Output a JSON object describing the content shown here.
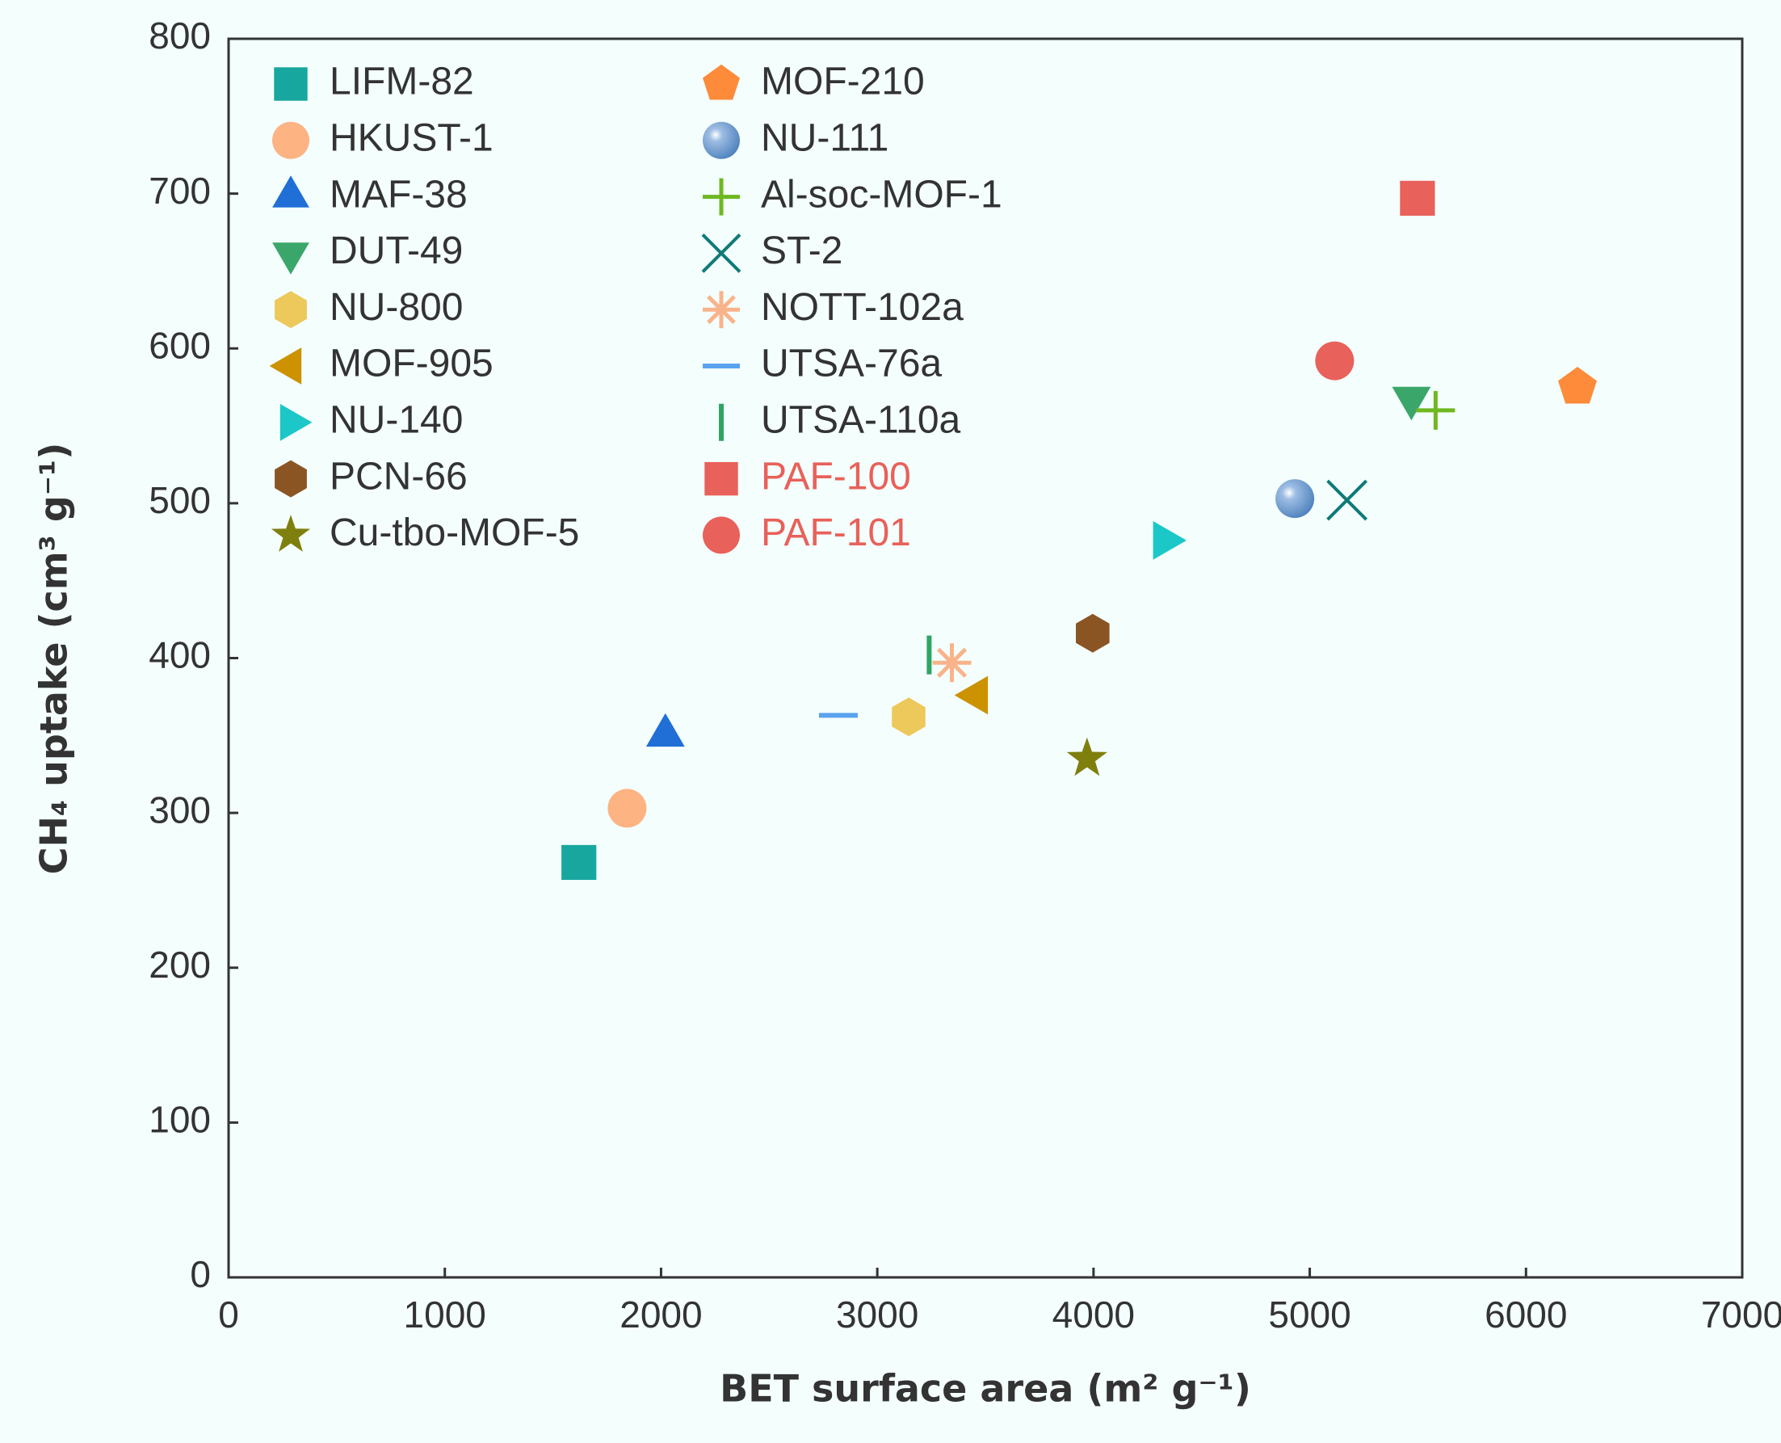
{
  "chart_data": {
    "type": "scatter",
    "xlabel": "BET surface area (m² g⁻¹)",
    "ylabel": "CH₄ uptake (cm³ g⁻¹)",
    "xlim": [
      0,
      7000
    ],
    "xticks": [
      0,
      1000,
      2000,
      3000,
      4000,
      5000,
      6000,
      7000
    ],
    "ylim": [
      0,
      800
    ],
    "yticks": [
      0,
      100,
      200,
      300,
      400,
      500,
      600,
      700,
      800
    ],
    "legend": "upper left",
    "series": [
      {
        "name": "LIFM-82",
        "color": "#17a79e",
        "marker": "square",
        "x": [
          1620
        ],
        "values": [
          268
        ]
      },
      {
        "name": "HKUST-1",
        "color": "#fdb382",
        "marker": "circle",
        "x": [
          1843
        ],
        "values": [
          303
        ]
      },
      {
        "name": "MAF-38",
        "color": "#1f6fd6",
        "marker": "triangle-up",
        "x": [
          2020
        ],
        "values": [
          350
        ]
      },
      {
        "name": "DUT-49",
        "color": "#3aa66a",
        "marker": "triangle-down",
        "x": [
          5470
        ],
        "values": [
          568
        ]
      },
      {
        "name": "NU-800",
        "color": "#edc85a",
        "marker": "hexagon",
        "x": [
          3145
        ],
        "values": [
          362
        ]
      },
      {
        "name": "MOF-905",
        "color": "#cc9200",
        "marker": "triangle-left",
        "x": [
          3460
        ],
        "values": [
          376
        ]
      },
      {
        "name": "NU-140",
        "color": "#1bc7c7",
        "marker": "triangle-right",
        "x": [
          4327
        ],
        "values": [
          476
        ]
      },
      {
        "name": "PCN-66",
        "color": "#8a5523",
        "marker": "hexagon",
        "x": [
          3996
        ],
        "values": [
          416
        ]
      },
      {
        "name": "Cu-tbo-MOF-5",
        "color": "#7f7f0e",
        "marker": "star",
        "x": [
          3970
        ],
        "values": [
          335
        ]
      },
      {
        "name": "MOF-210",
        "color": "#fd8b3a",
        "marker": "pentagon",
        "x": [
          6238
        ],
        "values": [
          575
        ]
      },
      {
        "name": "NU-111",
        "color": "#6a9bd0",
        "marker": "sphere",
        "x": [
          4931
        ],
        "values": [
          503
        ]
      },
      {
        "name": "Al-soc-MOF-1",
        "color": "#6fb821",
        "marker": "plus",
        "x": [
          5582
        ],
        "values": [
          560
        ]
      },
      {
        "name": "ST-2",
        "color": "#0e7a78",
        "marker": "x",
        "x": [
          5172
        ],
        "values": [
          502
        ]
      },
      {
        "name": "NOTT-102a",
        "color": "#f9b38a",
        "marker": "asterisk",
        "x": [
          3345
        ],
        "values": [
          397
        ]
      },
      {
        "name": "UTSA-76a",
        "color": "#5ba3ef",
        "marker": "hline",
        "x": [
          2820
        ],
        "values": [
          363
        ]
      },
      {
        "name": "UTSA-110a",
        "color": "#2fa564",
        "marker": "vline",
        "x": [
          3240
        ],
        "values": [
          402
        ]
      },
      {
        "name": "PAF-100",
        "color": "#e8615a",
        "marker": "square",
        "text_color": "#e8615a",
        "x": [
          5498
        ],
        "values": [
          697
        ]
      },
      {
        "name": "PAF-101",
        "color": "#e8615a",
        "marker": "circle",
        "text_color": "#e8615a",
        "x": [
          5115
        ],
        "values": [
          592
        ]
      }
    ]
  }
}
